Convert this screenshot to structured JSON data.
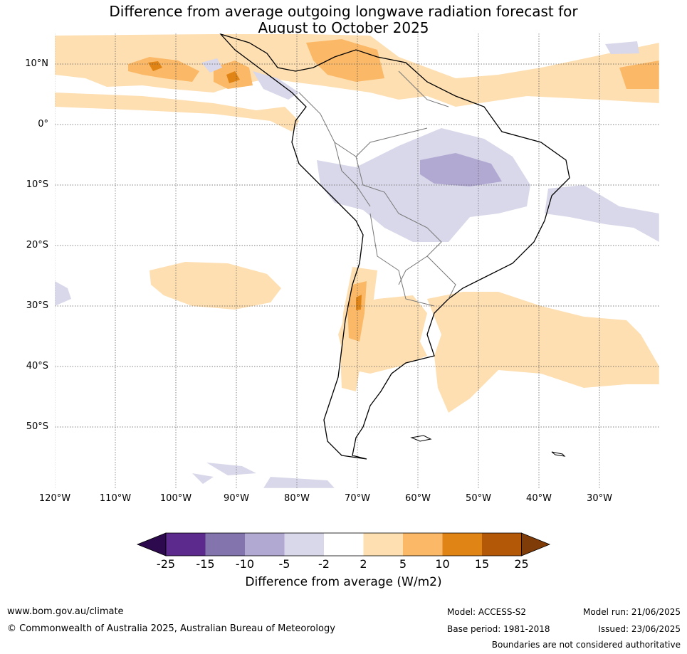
{
  "title": {
    "line1": "Difference from average outgoing longwave radiation forecast for",
    "line2": "August to October 2025"
  },
  "map": {
    "lat_labels": [
      "10°N",
      "0°",
      "10°S",
      "20°S",
      "30°S",
      "40°S",
      "50°S"
    ],
    "lon_labels": [
      "120°W",
      "110°W",
      "100°W",
      "90°W",
      "80°W",
      "70°W",
      "60°W",
      "50°W",
      "40°W",
      "30°W"
    ]
  },
  "colorbar": {
    "ticks": [
      "-25",
      "-15",
      "-10",
      "-5",
      "-2",
      "2",
      "5",
      "10",
      "15",
      "25"
    ],
    "colors": [
      "#2d0a4d",
      "#5b2a8c",
      "#8374ad",
      "#b2a9d3",
      "#d8d8ea",
      "#ffffff",
      "#fedfb2",
      "#fbb866",
      "#e08515",
      "#b35806",
      "#7f3b08"
    ],
    "label": "Difference from average (W/m2)"
  },
  "footer": {
    "url": "www.bom.gov.au/climate",
    "copyright": "© Commonwealth of Australia 2025, Australian Bureau of Meteorology",
    "model": "Model: ACCESS-S2",
    "base_period": "Base period: 1981-2018",
    "model_run": "Model run: 21/06/2025",
    "issued": "Issued: 23/06/2025",
    "disclaimer": "Boundaries are not considered authoritative"
  }
}
